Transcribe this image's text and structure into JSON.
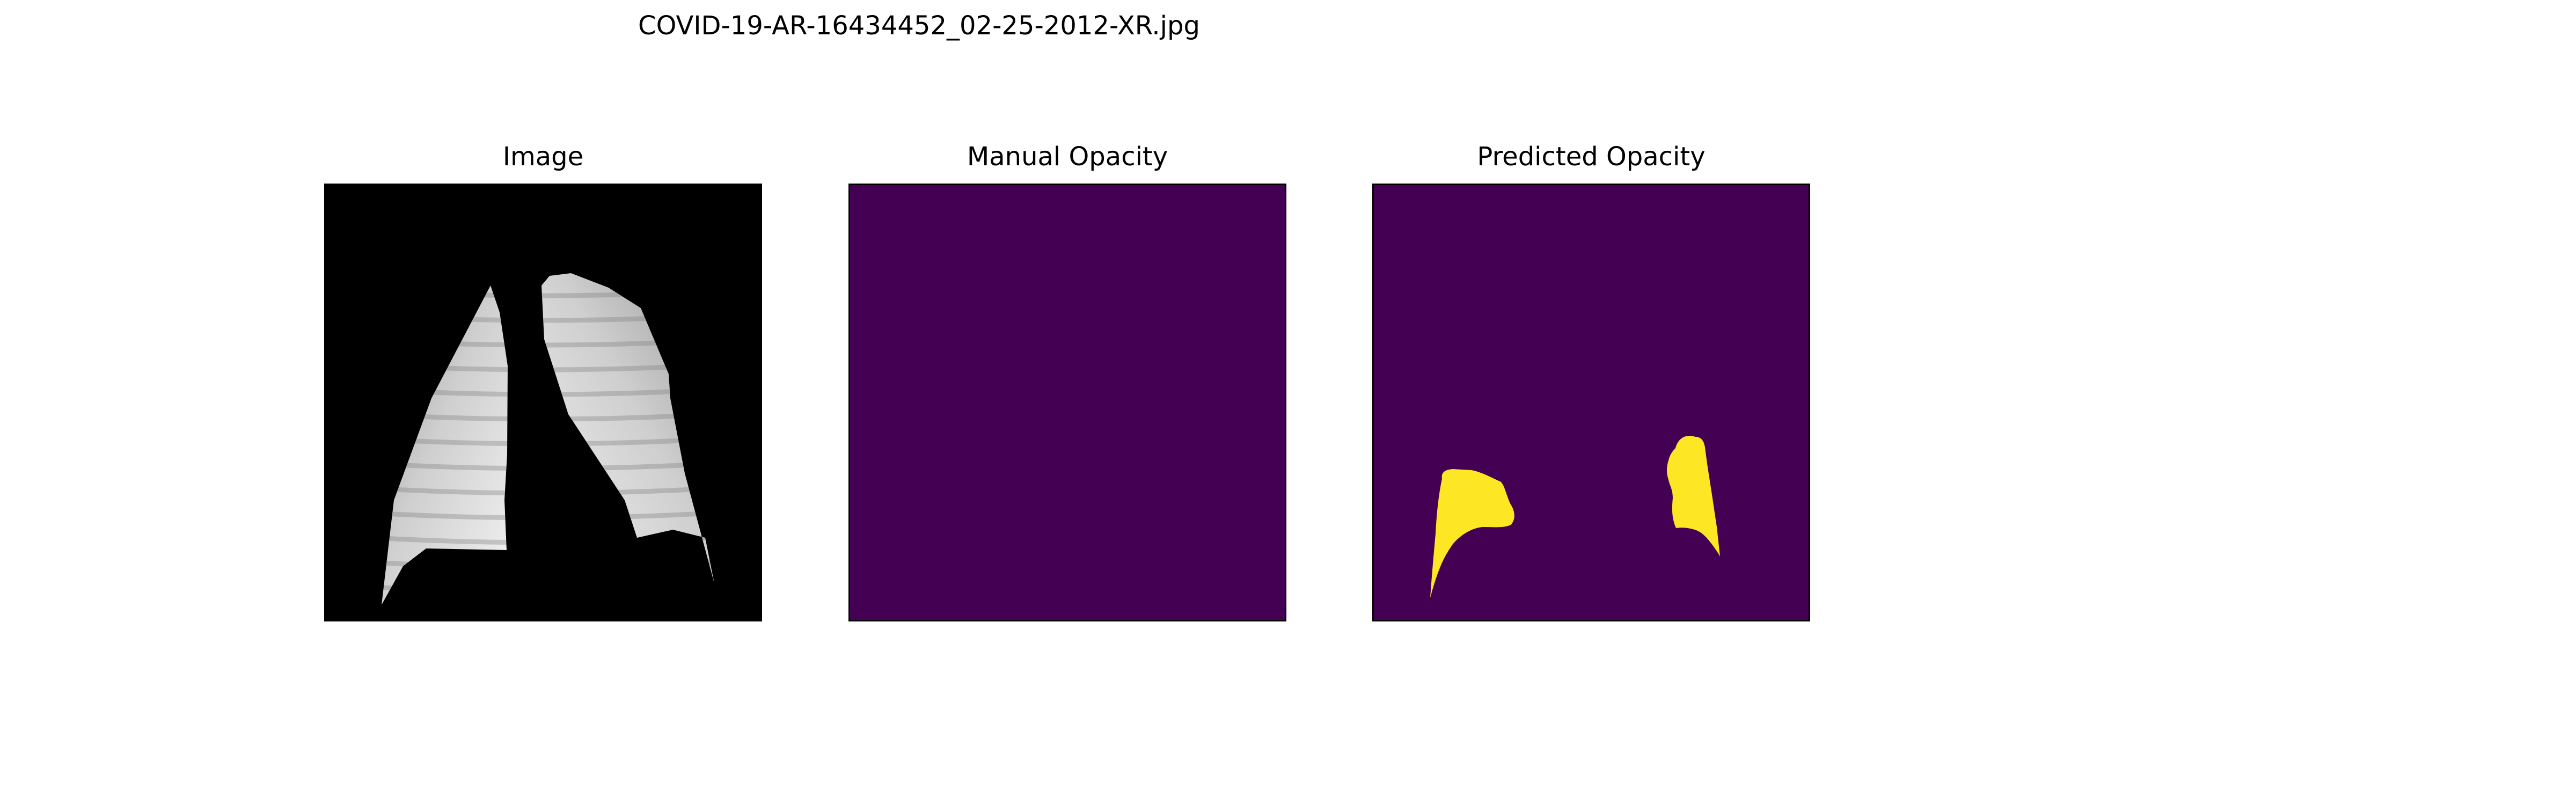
{
  "figure": {
    "title": "COVID-19-AR-16434452_02-25-2012-XR.jpg"
  },
  "panels": [
    {
      "title": "Image",
      "content": "chest x-ray, lungs segmented on black background"
    },
    {
      "title": "Manual Opacity",
      "content": "empty mask"
    },
    {
      "title": "Predicted Opacity",
      "content": "two predicted opacity regions"
    }
  ],
  "colors": {
    "background_page": "#ffffff",
    "xray_background": "#000000",
    "mask_background": "#440154",
    "mask_foreground": "#fde725",
    "frame": "#000000"
  }
}
